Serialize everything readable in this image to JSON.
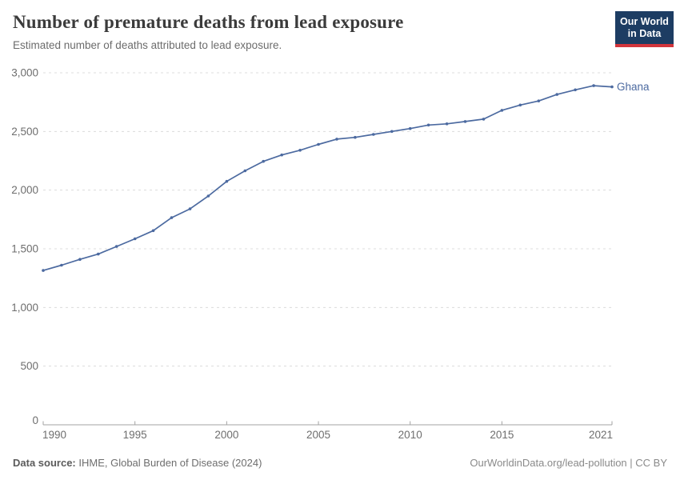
{
  "header": {
    "title": "Number of premature deaths from lead exposure",
    "subtitle": "Estimated number of deaths attributed to lead exposure."
  },
  "logo": {
    "line1": "Our World",
    "line2": "in Data",
    "bg_color": "#1d3d63",
    "accent_color": "#d2353c"
  },
  "chart_data": {
    "type": "line",
    "title": "Number of premature deaths from lead exposure",
    "xlabel": "",
    "ylabel": "",
    "xlim": [
      1990,
      2021
    ],
    "ylim": [
      0,
      3000
    ],
    "grid": "horizontal-dashed",
    "legend": "end-of-line-label",
    "x_ticks": [
      1990,
      1995,
      2000,
      2005,
      2010,
      2015,
      2021
    ],
    "y_ticks": [
      0,
      500,
      1000,
      1500,
      2000,
      2500,
      3000
    ],
    "y_tick_labels": [
      "0",
      "500",
      "1,000",
      "1,500",
      "2,000",
      "2,500",
      "3,000"
    ],
    "series": [
      {
        "name": "Ghana",
        "color": "#4c6aa0",
        "x": [
          1990,
          1991,
          1992,
          1993,
          1994,
          1995,
          1996,
          1997,
          1998,
          1999,
          2000,
          2001,
          2002,
          2003,
          2004,
          2005,
          2006,
          2007,
          2008,
          2009,
          2010,
          2011,
          2012,
          2013,
          2014,
          2015,
          2016,
          2017,
          2018,
          2019,
          2020,
          2021
        ],
        "values": [
          1315,
          1360,
          1410,
          1455,
          1520,
          1585,
          1655,
          1765,
          1840,
          1950,
          2075,
          2165,
          2245,
          2300,
          2340,
          2390,
          2435,
          2450,
          2475,
          2500,
          2525,
          2555,
          2565,
          2585,
          2605,
          2680,
          2725,
          2760,
          2815,
          2855,
          2890,
          2880
        ]
      }
    ],
    "colors": {
      "gridline": "#dcdcdc",
      "axis": "#a3a3a3",
      "tick_label": "#6e6e6e"
    }
  },
  "footer": {
    "source_label": "Data source:",
    "source_text": " IHME, Global Burden of Disease (2024)",
    "credit": "OurWorldinData.org/lead-pollution | CC BY"
  }
}
